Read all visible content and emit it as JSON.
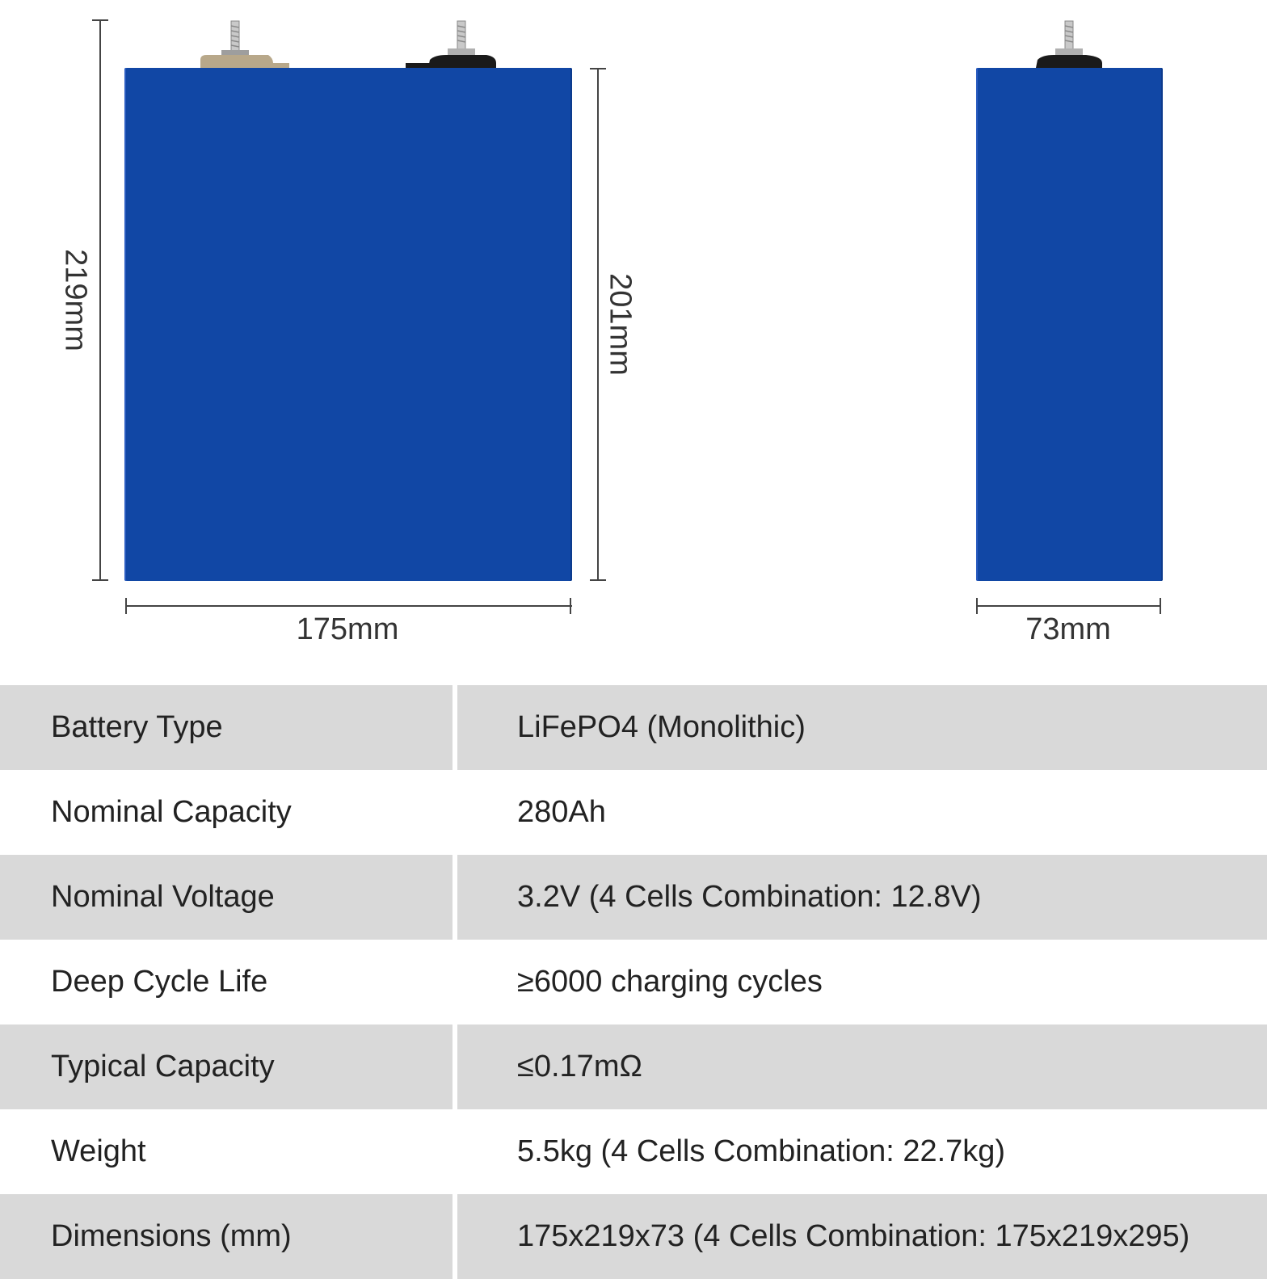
{
  "diagram": {
    "front_height_total": "219mm",
    "front_height_body": "201mm",
    "front_width": "175mm",
    "side_width": "73mm",
    "colors": {
      "cell_body": "#1147a5",
      "terminal_positive": "#b8a88a",
      "terminal_negative": "#1a1a1a"
    }
  },
  "specs": [
    {
      "key": "Battery Type",
      "value": "LiFePO4 (Monolithic)"
    },
    {
      "key": "Nominal Capacity",
      "value": "280Ah"
    },
    {
      "key": "Nominal Voltage",
      "value": "3.2V (4 Cells Combination: 12.8V)"
    },
    {
      "key": "Deep Cycle Life",
      "value": "≥6000 charging cycles"
    },
    {
      "key": "Typical Capacity",
      "value": "≤0.17mΩ"
    },
    {
      "key": "Weight",
      "value": "5.5kg (4 Cells Combination: 22.7kg)"
    },
    {
      "key": "Dimensions (mm)",
      "value": "175x219x73 (4 Cells Combination: 175x219x295)"
    }
  ]
}
